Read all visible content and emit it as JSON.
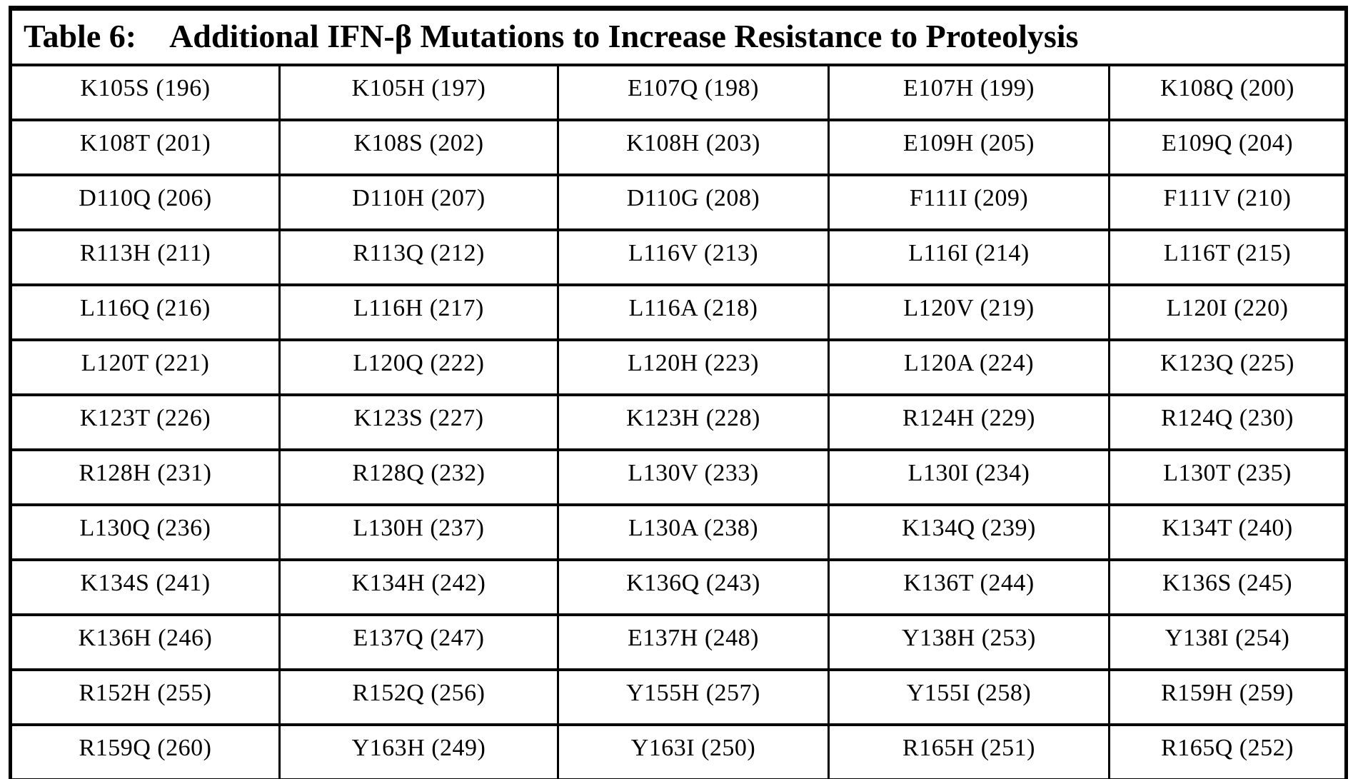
{
  "page": {
    "background_color": "#ffffff",
    "text_color": "#000000",
    "border_color": "#000000"
  },
  "table": {
    "title_label": "Table 6:",
    "title_text": "Additional IFN-β Mutations to Increase Resistance to Proteolysis",
    "column_count": 5,
    "rows": [
      [
        "K105S (196)",
        "K105H (197)",
        "E107Q (198)",
        "E107H (199)",
        "K108Q (200)"
      ],
      [
        "K108T (201)",
        "K108S (202)",
        "K108H (203)",
        "E109H (205)",
        "E109Q (204)"
      ],
      [
        "D110Q (206)",
        "D110H (207)",
        "D110G (208)",
        "F111I (209)",
        "F111V (210)"
      ],
      [
        "R113H (211)",
        "R113Q (212)",
        "L116V (213)",
        "L116I (214)",
        "L116T (215)"
      ],
      [
        "L116Q (216)",
        "L116H (217)",
        "L116A (218)",
        "L120V (219)",
        "L120I (220)"
      ],
      [
        "L120T (221)",
        "L120Q (222)",
        "L120H (223)",
        "L120A (224)",
        "K123Q (225)"
      ],
      [
        "K123T (226)",
        "K123S (227)",
        "K123H (228)",
        "R124H (229)",
        "R124Q (230)"
      ],
      [
        "R128H (231)",
        "R128Q (232)",
        "L130V (233)",
        "L130I (234)",
        "L130T (235)"
      ],
      [
        "L130Q (236)",
        "L130H (237)",
        "L130A (238)",
        "K134Q (239)",
        "K134T (240)"
      ],
      [
        "K134S (241)",
        "K134H (242)",
        "K136Q (243)",
        "K136T (244)",
        "K136S (245)"
      ],
      [
        "K136H (246)",
        "E137Q (247)",
        "E137H (248)",
        "Y138H (253)",
        "Y138I (254)"
      ],
      [
        "R152H (255)",
        "R152Q (256)",
        "Y155H (257)",
        "Y155I (258)",
        "R159H (259)"
      ],
      [
        "R159Q (260)",
        "Y163H (249)",
        "Y163I (250)",
        "R165H (251)",
        "R165Q (252)"
      ]
    ]
  }
}
